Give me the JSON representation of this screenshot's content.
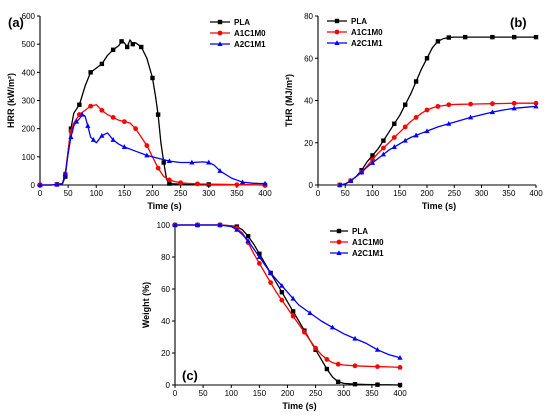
{
  "chart_data": [
    {
      "type": "line",
      "panel_label": "(a)",
      "xlabel": "Time (s)",
      "ylabel": "HRR (kW/m²)",
      "xlim": [
        0,
        400
      ],
      "ylim": [
        0,
        600
      ],
      "xticks": [
        0,
        50,
        100,
        150,
        200,
        250,
        300,
        350,
        400
      ],
      "yticks": [
        0,
        100,
        200,
        300,
        400,
        500,
        600
      ],
      "legend_position": "top-right",
      "series": [
        {
          "name": "PLA",
          "color": "#000000",
          "marker": "square",
          "x": [
            0,
            20,
            30,
            40,
            45,
            50,
            55,
            60,
            70,
            80,
            90,
            100,
            110,
            120,
            130,
            140,
            145,
            150,
            155,
            160,
            165,
            170,
            180,
            190,
            200,
            205,
            210,
            215,
            220,
            225,
            230,
            250,
            300,
            350,
            400
          ],
          "y": [
            0,
            0,
            2,
            5,
            30,
            120,
            200,
            255,
            285,
            350,
            400,
            415,
            430,
            460,
            480,
            495,
            510,
            505,
            490,
            515,
            500,
            505,
            490,
            450,
            380,
            320,
            250,
            150,
            80,
            20,
            5,
            3,
            2,
            1,
            0
          ]
        },
        {
          "name": "A1C1M0",
          "color": "#ff0000",
          "marker": "circle",
          "x": [
            0,
            20,
            30,
            40,
            45,
            50,
            55,
            60,
            70,
            80,
            90,
            100,
            110,
            120,
            130,
            140,
            150,
            160,
            170,
            180,
            190,
            200,
            210,
            220,
            230,
            240,
            250,
            260,
            280,
            300,
            350,
            400
          ],
          "y": [
            0,
            0,
            2,
            5,
            40,
            120,
            190,
            220,
            250,
            265,
            280,
            285,
            265,
            250,
            240,
            230,
            225,
            220,
            200,
            170,
            140,
            100,
            60,
            30,
            18,
            12,
            8,
            6,
            4,
            3,
            1,
            0
          ]
        },
        {
          "name": "A2C1M1",
          "color": "#0000ff",
          "marker": "triangle",
          "x": [
            0,
            20,
            30,
            40,
            45,
            50,
            55,
            60,
            65,
            70,
            75,
            80,
            85,
            90,
            95,
            100,
            110,
            120,
            130,
            140,
            150,
            170,
            190,
            210,
            230,
            250,
            270,
            290,
            300,
            310,
            320,
            340,
            360,
            380,
            400
          ],
          "y": [
            0,
            0,
            2,
            5,
            40,
            110,
            170,
            210,
            225,
            235,
            250,
            245,
            210,
            170,
            160,
            150,
            175,
            185,
            160,
            145,
            135,
            120,
            105,
            95,
            85,
            80,
            80,
            82,
            80,
            70,
            50,
            25,
            10,
            6,
            5
          ]
        }
      ]
    },
    {
      "type": "line",
      "panel_label": "(b)",
      "xlabel": "Time (s)",
      "ylabel": "THR (MJ/m²)",
      "xlim": [
        0,
        400
      ],
      "ylim": [
        0,
        80
      ],
      "xticks": [
        0,
        50,
        100,
        150,
        200,
        250,
        300,
        350,
        400
      ],
      "yticks": [
        0,
        20,
        40,
        60,
        80
      ],
      "legend_position": "top-left",
      "series": [
        {
          "name": "PLA",
          "color": "#000000",
          "marker": "square",
          "x": [
            40,
            50,
            60,
            70,
            80,
            90,
            100,
            110,
            120,
            130,
            140,
            150,
            160,
            170,
            180,
            190,
            200,
            210,
            220,
            230,
            240,
            250,
            270,
            300,
            320,
            340,
            360,
            380,
            400
          ],
          "y": [
            0,
            0.5,
            2,
            4,
            7,
            11,
            14,
            17,
            21,
            25,
            29,
            33,
            38,
            43,
            49,
            55,
            60,
            65,
            68,
            69.3,
            69.8,
            70,
            70,
            70,
            70,
            70,
            70,
            70,
            70
          ]
        },
        {
          "name": "A1C1M0",
          "color": "#ff0000",
          "marker": "circle",
          "x": [
            40,
            50,
            60,
            70,
            80,
            90,
            100,
            110,
            120,
            130,
            140,
            150,
            160,
            170,
            180,
            190,
            200,
            210,
            220,
            230,
            240,
            260,
            280,
            300,
            320,
            340,
            360,
            380,
            400
          ],
          "y": [
            0,
            0.5,
            2,
            4,
            6,
            9,
            12,
            15,
            17.5,
            20,
            22.5,
            25,
            27.5,
            30,
            32,
            34,
            35.5,
            36.5,
            37.2,
            37.6,
            38,
            38.2,
            38.3,
            38.4,
            38.5,
            38.6,
            38.7,
            38.7,
            38.7
          ]
        },
        {
          "name": "A2C1M1",
          "color": "#0000ff",
          "marker": "triangle",
          "x": [
            40,
            50,
            60,
            70,
            80,
            90,
            100,
            110,
            120,
            130,
            140,
            150,
            160,
            170,
            180,
            190,
            200,
            220,
            240,
            260,
            280,
            300,
            320,
            340,
            360,
            380,
            400
          ],
          "y": [
            0,
            0.5,
            2,
            4,
            6,
            8.5,
            10.5,
            12.5,
            14.5,
            16.5,
            18,
            19.5,
            21,
            22.5,
            23.5,
            24.5,
            25.5,
            27.5,
            29,
            30.5,
            32,
            33.3,
            34.5,
            35.5,
            36.3,
            36.8,
            37.2
          ]
        }
      ]
    },
    {
      "type": "line",
      "panel_label": "(c)",
      "xlabel": "Time (s)",
      "ylabel": "Weight (%)",
      "xlim": [
        0,
        400
      ],
      "ylim": [
        0,
        100
      ],
      "xticks": [
        0,
        50,
        100,
        150,
        200,
        250,
        300,
        350,
        400
      ],
      "yticks": [
        0,
        20,
        40,
        60,
        80,
        100
      ],
      "legend_position": "top-right",
      "series": [
        {
          "name": "PLA",
          "color": "#000000",
          "marker": "square",
          "x": [
            0,
            20,
            40,
            60,
            80,
            100,
            110,
            120,
            130,
            140,
            150,
            160,
            170,
            180,
            190,
            200,
            210,
            220,
            230,
            240,
            250,
            260,
            270,
            280,
            290,
            300,
            320,
            340,
            360,
            380,
            400
          ],
          "y": [
            100,
            100,
            100,
            100,
            100,
            99.5,
            99,
            97,
            93,
            88,
            82,
            76,
            70,
            64,
            58,
            52,
            46,
            40,
            34,
            28,
            22,
            16,
            10,
            5,
            2,
            1,
            0.5,
            0.3,
            0.2,
            0.1,
            0
          ]
        },
        {
          "name": "A1C1M0",
          "color": "#ff0000",
          "marker": "circle",
          "x": [
            0,
            20,
            40,
            60,
            80,
            100,
            110,
            120,
            130,
            140,
            150,
            160,
            170,
            180,
            190,
            200,
            210,
            220,
            230,
            240,
            250,
            260,
            270,
            280,
            290,
            300,
            320,
            340,
            360,
            380,
            400
          ],
          "y": [
            100,
            100,
            100,
            100,
            100,
            99.5,
            98,
            95,
            89,
            82,
            76,
            70,
            64,
            58,
            53,
            48,
            43,
            38,
            33,
            28,
            23,
            19,
            16,
            14,
            13,
            12.5,
            12,
            11.7,
            11.5,
            11.3,
            11
          ]
        },
        {
          "name": "A2C1M1",
          "color": "#0000ff",
          "marker": "triangle",
          "x": [
            0,
            20,
            40,
            60,
            80,
            100,
            110,
            120,
            130,
            140,
            150,
            160,
            170,
            180,
            190,
            200,
            210,
            220,
            240,
            260,
            280,
            300,
            320,
            340,
            360,
            380,
            400
          ],
          "y": [
            100,
            100,
            100,
            100,
            100,
            99,
            97,
            94,
            90,
            85,
            80,
            75,
            70,
            66,
            62,
            58,
            54,
            50,
            45,
            40,
            36,
            32,
            29,
            26,
            22,
            19,
            17
          ]
        }
      ]
    }
  ]
}
